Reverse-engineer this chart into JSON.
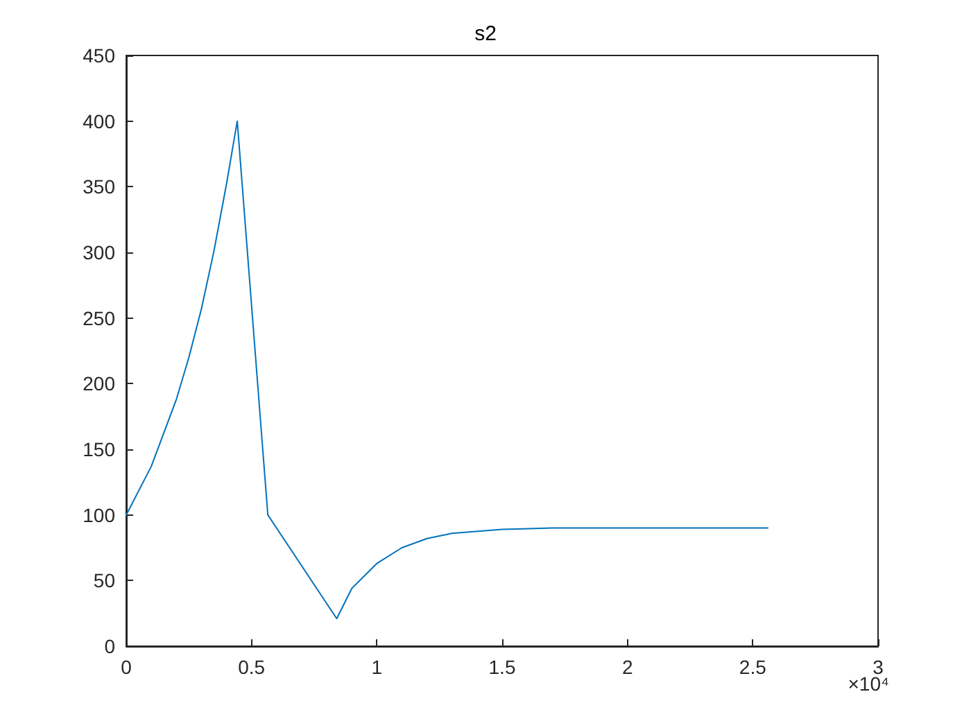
{
  "chart_data": {
    "type": "line",
    "title": "s2",
    "x": [
      0,
      0.1,
      0.2,
      0.25,
      0.3,
      0.35,
      0.4,
      0.443,
      0.565,
      0.84,
      0.9,
      1.0,
      1.1,
      1.2,
      1.3,
      1.5,
      1.7,
      2.0,
      2.56
    ],
    "series": [
      {
        "color": "#0072bd",
        "values": [
          100,
          137,
          188,
          220,
          257,
          301,
          352,
          400,
          100,
          21,
          44,
          63,
          75,
          82,
          86,
          89,
          90,
          90,
          90
        ]
      }
    ],
    "xlim": [
      0,
      3
    ],
    "xticks": [
      0,
      0.5,
      1,
      1.5,
      2,
      2.5,
      3
    ],
    "ylim": [
      0,
      450
    ],
    "yticks": [
      0,
      50,
      100,
      150,
      200,
      250,
      300,
      350,
      400,
      450
    ],
    "annotations": [
      "×10⁴"
    ],
    "grid": false,
    "marker": "none",
    "line_style": "solid"
  }
}
